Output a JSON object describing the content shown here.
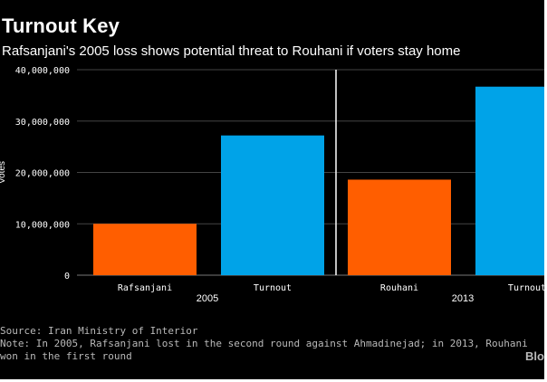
{
  "chart_data": {
    "type": "bar",
    "title": "Turnout Key",
    "subtitle": "Rafsanjani's 2005 loss shows potential threat to Rouhani if voters stay home",
    "ylabel": "Votes",
    "ylim": [
      0,
      40000000
    ],
    "yticks": [
      0,
      10000000,
      20000000,
      30000000,
      40000000
    ],
    "ytick_labels": [
      "0",
      "10,000,000",
      "20,000,000",
      "30,000,000",
      "40,000,000"
    ],
    "grid": true,
    "groups": [
      {
        "label": "2005",
        "bars": [
          {
            "category": "Rafsanjani",
            "value": 10000000,
            "color": "#ff5e00"
          },
          {
            "category": "Turnout",
            "value": 27200000,
            "color": "#00a3e8"
          }
        ]
      },
      {
        "label": "2013",
        "bars": [
          {
            "category": "Rouhani",
            "value": 18600000,
            "color": "#ff5e00"
          },
          {
            "category": "Turnout",
            "value": 36700000,
            "color": "#00a3e8"
          }
        ]
      }
    ]
  },
  "footnotes": {
    "source": "Source: Iran Ministry of Interior",
    "note_line1": "Note: In 2005, Rafsanjani lost in the second round against Ahmadinejad; in 2013, Rouhani",
    "note_line2": "won in the first round"
  },
  "brand": "Bloomberg",
  "colors": {
    "background": "#000000",
    "gridline": "#444444",
    "divider": "#ffffff",
    "candidate_bar": "#ff5e00",
    "turnout_bar": "#00a3e8"
  }
}
